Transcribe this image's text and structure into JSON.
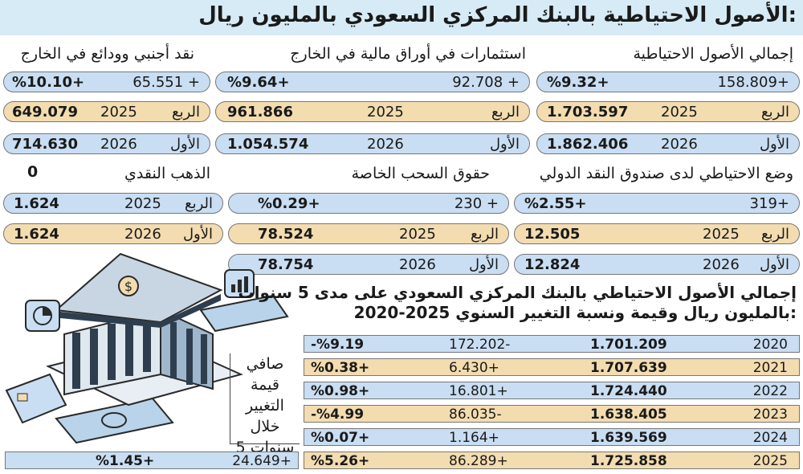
{
  "title": "الأصول الاحتياطية بالبنك المركزي السعودي بالمليون ريال:",
  "cards": [
    {
      "label": "إجمالي الأصول الاحتياطية",
      "change": "158.809+",
      "pct": "%9.32+",
      "q_label": "الربع",
      "year1": "2025",
      "val1": "1.703.597",
      "q2_label": "الأول",
      "year2": "2026",
      "val2": "1.862.406"
    },
    {
      "label": "استثمارات في أوراق مالية في الخارج",
      "change": "92.708 +",
      "pct": "%9.64+",
      "q_label": "الربع",
      "year1": "2025",
      "val1": "961.866",
      "q2_label": "الأول",
      "year2": "2026",
      "val2": "1.054.574"
    },
    {
      "label": "نقد أجنبي وودائع في الخارج",
      "change": "65.551 +",
      "pct": "%10.10+",
      "q_label": "الربع",
      "year1": "2025",
      "val1": "649.079",
      "q2_label": "الأول",
      "year2": "2026",
      "val2": "714.630"
    },
    {
      "label": "وضع الاحتياطي لدى صندوق النقد الدولي",
      "change": "319+",
      "pct": "%2.55+",
      "q_label": "الربع",
      "year1": "2025",
      "val1": "12.505",
      "q2_label": "الأول",
      "year2": "2026",
      "val2": "12.824"
    },
    {
      "label": "حقوق السحب الخاصة",
      "change": "230 +",
      "pct": "%0.29+",
      "q_label": "الربع",
      "year1": "2025",
      "val1": "78.524",
      "q2_label": "الأول",
      "year2": "2026",
      "val2": "78.754"
    },
    {
      "label": "الذهب النقدي",
      "change": "0",
      "q_label": "الربع",
      "year1": "2025",
      "val1": "1.624",
      "q2_label": "الأول",
      "year2": "2026",
      "val2": "1.624"
    }
  ],
  "history": {
    "title1": "إجمالي الأصول الاحتياطي بالبنك المركزي السعودي على مدى 5 سنوات",
    "title2": "2020-2025 بالمليون ريال وقيمة ونسبة التغيير السنوي:",
    "rows": [
      {
        "year": "2020",
        "value": "1.701.209",
        "change": "172.202-",
        "pct": "-%9.19"
      },
      {
        "year": "2021",
        "value": "1.707.639",
        "change": "6.430+",
        "pct": "%0.38+"
      },
      {
        "year": "2022",
        "value": "1.724.440",
        "change": "16.801+",
        "pct": "%0.98+"
      },
      {
        "year": "2023",
        "value": "1.638.405",
        "change": "86.035-",
        "pct": "-%4.99"
      },
      {
        "year": "2024",
        "value": "1.639.569",
        "change": "1.164+",
        "pct": "%0.07+"
      },
      {
        "year": "2025",
        "value": "1.725.858",
        "change": "86.289+",
        "pct": "%5.26+"
      }
    ],
    "net_label_lines": [
      "صافي",
      "قيمة",
      "التغيير خلال",
      "5 سنوات"
    ],
    "net_change": "24.649+",
    "net_pct": "%1.45+"
  }
}
